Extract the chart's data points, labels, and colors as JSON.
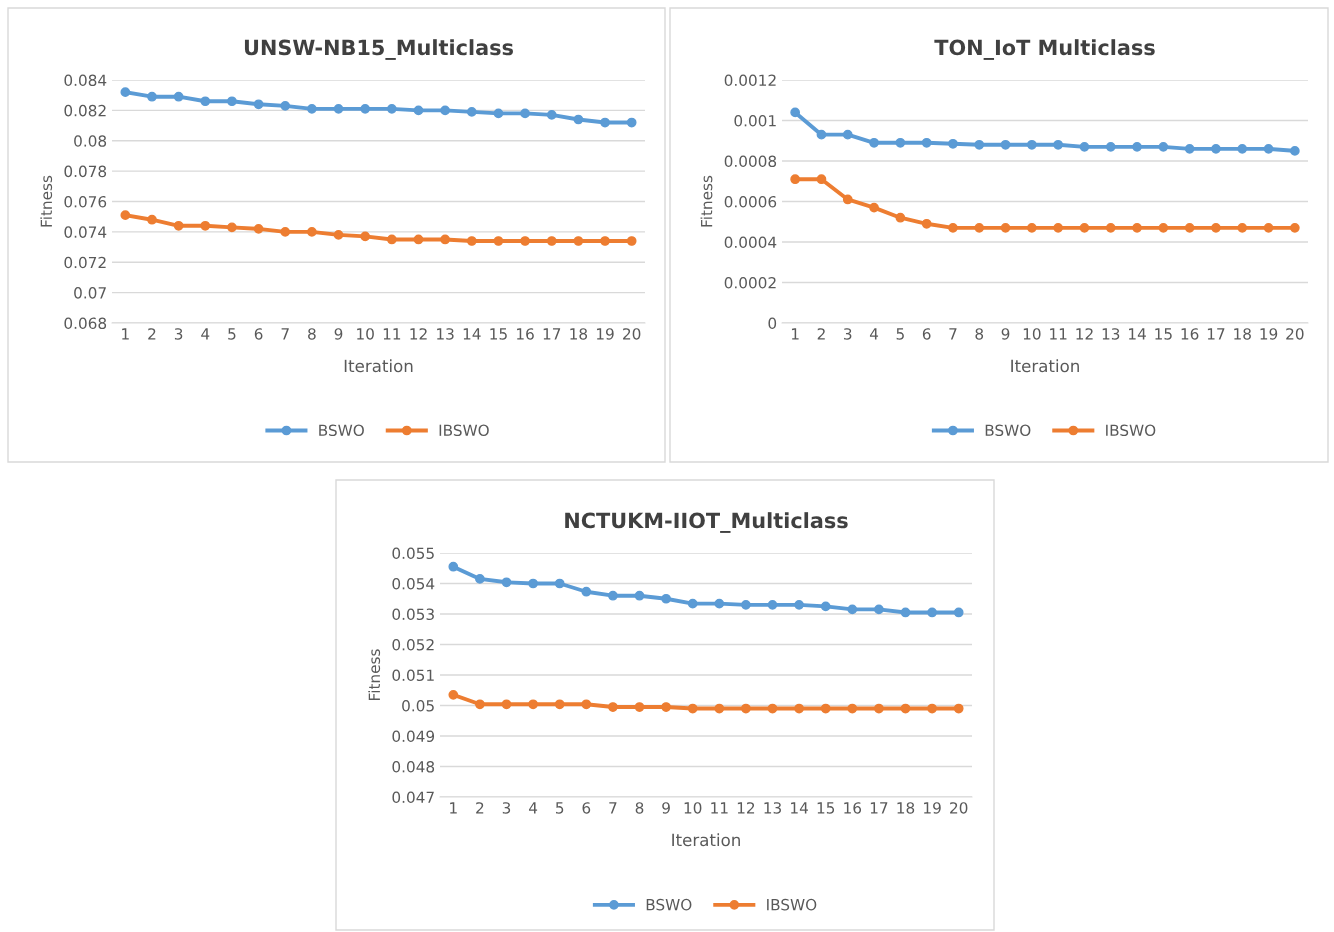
{
  "chart_data": [
    {
      "type": "line",
      "title": "UNSW-NB15_Multiclass",
      "xlabel": "Iteration",
      "ylabel": "Fitness",
      "categories": [
        "1",
        "2",
        "3",
        "4",
        "5",
        "6",
        "7",
        "8",
        "9",
        "10",
        "11",
        "12",
        "13",
        "14",
        "15",
        "16",
        "17",
        "18",
        "19",
        "20"
      ],
      "series": [
        {
          "name": "BSWO",
          "color": "#5b9bd5",
          "values": [
            0.0832,
            0.0829,
            0.0829,
            0.0826,
            0.0826,
            0.0824,
            0.0823,
            0.0821,
            0.0821,
            0.0821,
            0.0821,
            0.082,
            0.082,
            0.0819,
            0.0818,
            0.0818,
            0.0817,
            0.0814,
            0.0812,
            0.0812
          ]
        },
        {
          "name": "IBSWO",
          "color": "#ed7d31",
          "values": [
            0.0751,
            0.0748,
            0.0744,
            0.0744,
            0.0743,
            0.0742,
            0.074,
            0.074,
            0.0738,
            0.0737,
            0.0735,
            0.0735,
            0.0735,
            0.0734,
            0.0734,
            0.0734,
            0.0734,
            0.0734,
            0.0734,
            0.0734
          ]
        }
      ],
      "ylim": [
        0.068,
        0.084
      ],
      "yticks": [
        0.068,
        0.07,
        0.072,
        0.074,
        0.076,
        0.078,
        0.08,
        0.082,
        0.084
      ],
      "grid": "y",
      "legend": "bottom",
      "marker": "circle",
      "line_style": "solid"
    },
    {
      "type": "line",
      "title": "TON_IoT Multiclass",
      "xlabel": "Iteration",
      "ylabel": "Fitness",
      "categories": [
        "1",
        "2",
        "3",
        "4",
        "5",
        "6",
        "7",
        "8",
        "9",
        "10",
        "11",
        "12",
        "13",
        "14",
        "15",
        "16",
        "17",
        "18",
        "19",
        "20"
      ],
      "series": [
        {
          "name": "BSWO",
          "color": "#5b9bd5",
          "values": [
            0.00104,
            0.00093,
            0.00093,
            0.00089,
            0.00089,
            0.00089,
            0.000885,
            0.00088,
            0.00088,
            0.00088,
            0.00088,
            0.00087,
            0.00087,
            0.00087,
            0.00087,
            0.00086,
            0.00086,
            0.00086,
            0.00086,
            0.00085
          ]
        },
        {
          "name": "IBSWO",
          "color": "#ed7d31",
          "values": [
            0.00071,
            0.00071,
            0.00061,
            0.00057,
            0.00052,
            0.00049,
            0.00047,
            0.00047,
            0.00047,
            0.00047,
            0.00047,
            0.00047,
            0.00047,
            0.00047,
            0.00047,
            0.00047,
            0.00047,
            0.00047,
            0.00047,
            0.00047
          ]
        }
      ],
      "ylim": [
        0,
        0.0012
      ],
      "yticks": [
        0,
        0.0002,
        0.0004,
        0.0006,
        0.0008,
        0.001,
        0.0012
      ],
      "grid": "y",
      "legend": "bottom",
      "marker": "circle",
      "line_style": "solid"
    },
    {
      "type": "line",
      "title": "NCTUKM-IIOT_Multiclass",
      "xlabel": "Iteration",
      "ylabel": "Fitness",
      "categories": [
        "1",
        "2",
        "3",
        "4",
        "5",
        "6",
        "7",
        "8",
        "9",
        "10",
        "11",
        "12",
        "13",
        "14",
        "15",
        "16",
        "17",
        "18",
        "19",
        "20"
      ],
      "series": [
        {
          "name": "BSWO",
          "color": "#5b9bd5",
          "values": [
            0.05455,
            0.05415,
            0.05404,
            0.054,
            0.054,
            0.05373,
            0.0536,
            0.0536,
            0.0535,
            0.05334,
            0.05334,
            0.0533,
            0.0533,
            0.0533,
            0.05325,
            0.05315,
            0.05315,
            0.05305,
            0.05305,
            0.05305
          ]
        },
        {
          "name": "IBSWO",
          "color": "#ed7d31",
          "values": [
            0.05035,
            0.05004,
            0.05004,
            0.05004,
            0.05004,
            0.05004,
            0.04995,
            0.04995,
            0.04995,
            0.0499,
            0.0499,
            0.0499,
            0.0499,
            0.0499,
            0.0499,
            0.0499,
            0.0499,
            0.0499,
            0.0499,
            0.0499
          ]
        }
      ],
      "ylim": [
        0.047,
        0.055
      ],
      "yticks": [
        0.047,
        0.048,
        0.049,
        0.05,
        0.051,
        0.052,
        0.053,
        0.054,
        0.055
      ],
      "grid": "y",
      "legend": "bottom",
      "marker": "circle",
      "line_style": "solid"
    }
  ]
}
